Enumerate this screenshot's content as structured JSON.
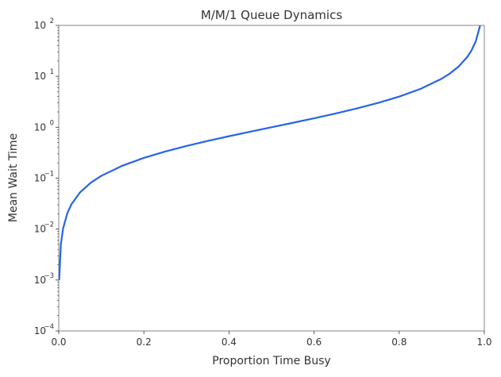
{
  "chart_data": {
    "type": "line",
    "title": "M/M/1 Queue Dynamics",
    "xlabel": "Proportion Time Busy",
    "ylabel": "Mean Wait Time",
    "xlim": [
      0,
      1
    ],
    "ylim": [
      0.0001,
      100
    ],
    "yscale": "log",
    "grid": false,
    "line_color": "#2563eb",
    "x_ticks": [
      "0.0",
      "0.2",
      "0.4",
      "0.6",
      "0.8",
      "1.0"
    ],
    "y_ticks": [
      {
        "base": "10",
        "exp": "−4"
      },
      {
        "base": "10",
        "exp": "−3"
      },
      {
        "base": "10",
        "exp": "−2"
      },
      {
        "base": "10",
        "exp": "−1"
      },
      {
        "base": "10",
        "exp": "0"
      },
      {
        "base": "10",
        "exp": "1"
      },
      {
        "base": "10",
        "exp": "2"
      }
    ],
    "series": [
      {
        "x": [
          0.001,
          0.005,
          0.01,
          0.02,
          0.03,
          0.05,
          0.075,
          0.1,
          0.15,
          0.2,
          0.25,
          0.3,
          0.35,
          0.4,
          0.45,
          0.5,
          0.55,
          0.6,
          0.65,
          0.7,
          0.75,
          0.8,
          0.85,
          0.9,
          0.92,
          0.94,
          0.96,
          0.97,
          0.98,
          0.99
        ],
        "y": [
          0.001001,
          0.005025,
          0.0101,
          0.0204,
          0.0309,
          0.0526,
          0.0811,
          0.1111,
          0.1765,
          0.25,
          0.3333,
          0.4286,
          0.5385,
          0.6667,
          0.8182,
          1,
          1.2222,
          1.5,
          1.8571,
          2.3333,
          3,
          4,
          5.6667,
          9,
          11.5,
          15.667,
          24,
          32.333,
          49,
          99
        ]
      }
    ]
  }
}
